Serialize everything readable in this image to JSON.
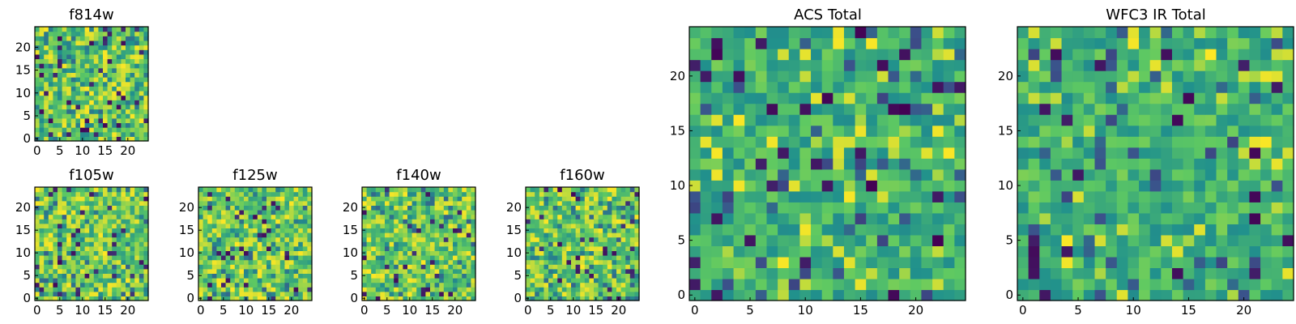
{
  "chart_data": [
    {
      "type": "heatmap",
      "title": "f814w",
      "xticks": [
        "0",
        "5",
        "10",
        "15",
        "20"
      ],
      "yticks": [
        "0",
        "5",
        "10",
        "15",
        "20"
      ],
      "xlim": [
        0,
        25
      ],
      "ylim": [
        0,
        25
      ],
      "cmap": "viridis",
      "seed": 11,
      "style": "fine"
    },
    {
      "type": "heatmap",
      "title": "f105w",
      "xticks": [
        "0",
        "5",
        "10",
        "15",
        "20"
      ],
      "yticks": [
        "0",
        "5",
        "10",
        "15",
        "20"
      ],
      "xlim": [
        0,
        25
      ],
      "ylim": [
        0,
        25
      ],
      "cmap": "viridis",
      "seed": 23,
      "style": "bright"
    },
    {
      "type": "heatmap",
      "title": "f125w",
      "xticks": [
        "0",
        "5",
        "10",
        "15",
        "20"
      ],
      "yticks": [
        "0",
        "5",
        "10",
        "15",
        "20"
      ],
      "xlim": [
        0,
        25
      ],
      "ylim": [
        0,
        25
      ],
      "cmap": "viridis",
      "seed": 37,
      "style": "bright"
    },
    {
      "type": "heatmap",
      "title": "f140w",
      "xticks": [
        "0",
        "5",
        "10",
        "15",
        "20"
      ],
      "yticks": [
        "0",
        "5",
        "10",
        "15",
        "20"
      ],
      "xlim": [
        0,
        25
      ],
      "ylim": [
        0,
        25
      ],
      "cmap": "viridis",
      "seed": 41,
      "style": "bright"
    },
    {
      "type": "heatmap",
      "title": "f160w",
      "xticks": [
        "0",
        "5",
        "10",
        "15",
        "20"
      ],
      "yticks": [
        "0",
        "5",
        "10",
        "15",
        "20"
      ],
      "xlim": [
        0,
        25
      ],
      "ylim": [
        0,
        25
      ],
      "cmap": "viridis",
      "seed": 53,
      "style": "bright"
    },
    {
      "type": "heatmap",
      "title": "ACS Total",
      "xticks": [
        "0",
        "5",
        "10",
        "15",
        "20"
      ],
      "yticks": [
        "0",
        "5",
        "10",
        "15",
        "20"
      ],
      "xlim": [
        0,
        25
      ],
      "ylim": [
        0,
        25
      ],
      "cmap": "viridis",
      "seed": 67,
      "style": "mid"
    },
    {
      "type": "heatmap",
      "title": "WFC3 IR Total",
      "xticks": [
        "0",
        "5",
        "10",
        "15",
        "20"
      ],
      "yticks": [
        "0",
        "5",
        "10",
        "15",
        "20"
      ],
      "xlim": [
        0,
        25
      ],
      "ylim": [
        0,
        25
      ],
      "cmap": "viridis",
      "seed": 79,
      "style": "mid"
    }
  ],
  "colors": {
    "viridis_stops": [
      "#440154",
      "#3b528b",
      "#21918c",
      "#5ec962",
      "#fde725"
    ],
    "axis": "#000000",
    "background": "#ffffff"
  }
}
